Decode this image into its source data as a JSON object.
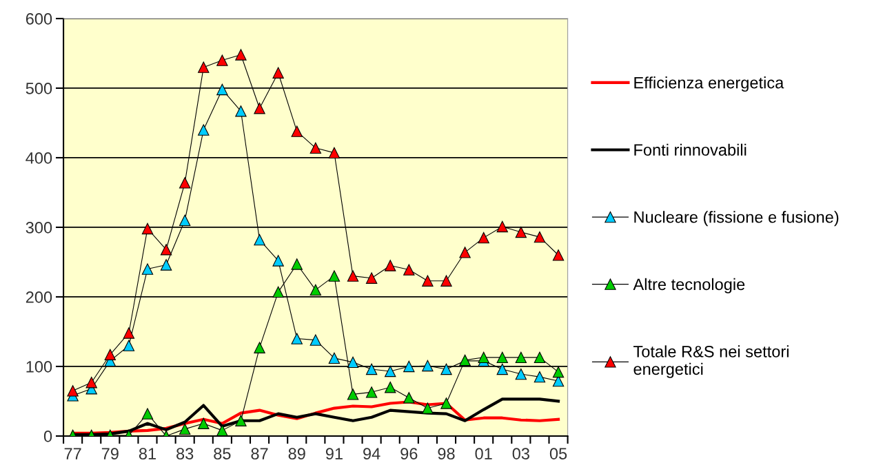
{
  "chart_data": {
    "type": "line",
    "categories": [
      "77",
      null,
      "79",
      null,
      "81",
      null,
      "83",
      null,
      "85",
      null,
      "87",
      null,
      "89",
      null,
      "91",
      null,
      "94",
      null,
      "96",
      null,
      "98",
      null,
      "01",
      null,
      "03",
      null,
      "05"
    ],
    "ylim": [
      0,
      600
    ],
    "yticks": [
      0,
      100,
      200,
      300,
      400,
      500,
      600
    ],
    "grid": "y",
    "legend": "right",
    "series": [
      {
        "name": "Efficienza energetica",
        "color": "#ff0000",
        "marker": "none",
        "values": [
          4,
          4,
          5,
          7,
          8,
          11,
          18,
          24,
          18,
          33,
          37,
          30,
          25,
          33,
          40,
          43,
          42,
          47,
          49,
          45,
          47,
          23,
          26,
          26,
          23,
          22,
          24
        ]
      },
      {
        "name": "Fonti rinnovabili",
        "color": "#000000",
        "marker": "none",
        "values": [
          2,
          2,
          3,
          7,
          18,
          9,
          20,
          44,
          14,
          22,
          22,
          32,
          27,
          32,
          27,
          22,
          27,
          37,
          35,
          33,
          32,
          22,
          38,
          53,
          53,
          53,
          50
        ]
      },
      {
        "name": "Nucleare (fissione e fusione)",
        "color": "#00ccff",
        "marker": "triangle",
        "values": [
          58,
          68,
          108,
          130,
          240,
          246,
          310,
          440,
          498,
          467,
          282,
          252,
          140,
          138,
          112,
          106,
          96,
          93,
          100,
          101,
          96,
          108,
          108,
          96,
          89,
          85,
          79
        ]
      },
      {
        "name": "Altre tecnologie",
        "color": "#00cc00",
        "marker": "triangle",
        "values": [
          1,
          1,
          1,
          1,
          32,
          0,
          10,
          18,
          8,
          22,
          127,
          207,
          247,
          210,
          230,
          60,
          63,
          70,
          55,
          40,
          47,
          109,
          113,
          113,
          113,
          113,
          92
        ]
      },
      {
        "name": "Totale R&S nei settori\nenergetici",
        "color": "#ff0000",
        "marker": "triangle",
        "values": [
          65,
          77,
          117,
          148,
          298,
          268,
          364,
          530,
          540,
          548,
          471,
          522,
          438,
          414,
          407,
          230,
          227,
          245,
          239,
          223,
          223,
          264,
          285,
          301,
          293,
          286,
          260
        ]
      }
    ]
  }
}
